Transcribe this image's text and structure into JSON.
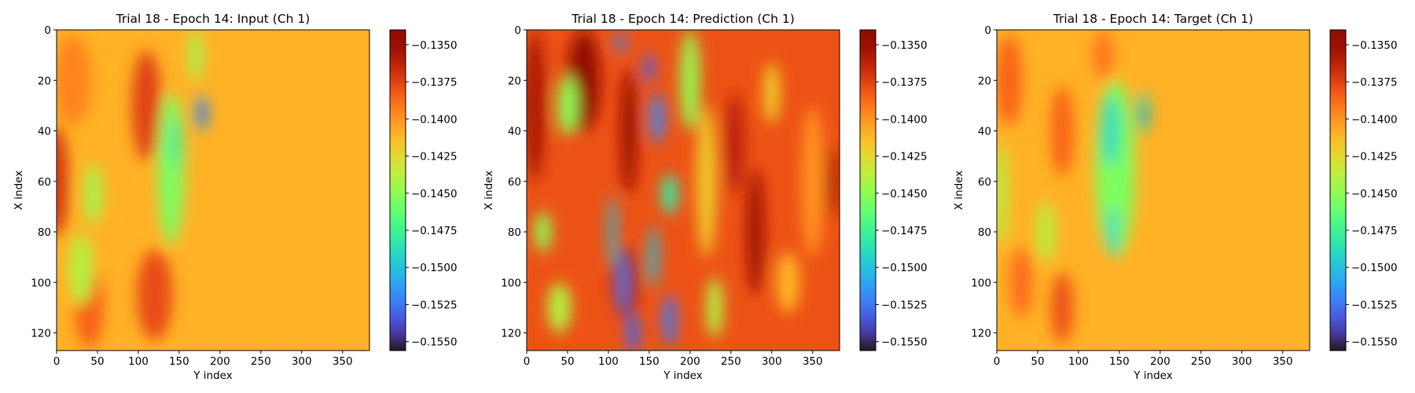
{
  "chart_data": [
    {
      "type": "heatmap",
      "title": "Trial 18 - Epoch 14: Input (Ch 1)",
      "xlabel": "Y index",
      "ylabel": "X index",
      "xlim": [
        0,
        383
      ],
      "ylim": [
        127,
        0
      ],
      "xticks": [
        "0",
        "50",
        "100",
        "150",
        "200",
        "250",
        "300",
        "350"
      ],
      "yticks": [
        "0",
        "20",
        "40",
        "60",
        "80",
        "100",
        "120"
      ],
      "colormap": "turbo",
      "color_range": [
        -0.1556,
        -0.134
      ],
      "colorbar_ticks": [
        "−0.1350",
        "−0.1375",
        "−0.1400",
        "−0.1425",
        "−0.1450",
        "−0.1475",
        "−0.1500",
        "−0.1525",
        "−0.1550"
      ],
      "features": {
        "background_value": -0.141,
        "blobs": [
          {
            "x": 0,
            "y": 60,
            "rx": 14,
            "ry": 22,
            "value": -0.137
          },
          {
            "x": 20,
            "y": 20,
            "rx": 22,
            "ry": 18,
            "value": -0.1395
          },
          {
            "x": 110,
            "y": 30,
            "rx": 18,
            "ry": 22,
            "value": -0.1375
          },
          {
            "x": 120,
            "y": 105,
            "rx": 22,
            "ry": 18,
            "value": -0.1378
          },
          {
            "x": 40,
            "y": 110,
            "rx": 18,
            "ry": 16,
            "value": -0.1385
          },
          {
            "x": 30,
            "y": 95,
            "rx": 14,
            "ry": 14,
            "value": -0.144
          },
          {
            "x": 45,
            "y": 65,
            "rx": 10,
            "ry": 12,
            "value": -0.1445
          },
          {
            "x": 140,
            "y": 55,
            "rx": 16,
            "ry": 30,
            "value": -0.1455
          },
          {
            "x": 145,
            "y": 45,
            "rx": 6,
            "ry": 10,
            "value": -0.148
          },
          {
            "x": 178,
            "y": 33,
            "rx": 7,
            "ry": 7,
            "value": -0.1515
          },
          {
            "x": 180,
            "y": 33,
            "rx": 3,
            "ry": 3,
            "value": -0.1545
          },
          {
            "x": 170,
            "y": 10,
            "rx": 8,
            "ry": 10,
            "value": -0.1445
          }
        ]
      }
    },
    {
      "type": "heatmap",
      "title": "Trial 18 - Epoch 14: Prediction (Ch 1)",
      "xlabel": "Y index",
      "ylabel": "X index",
      "xlim": [
        0,
        383
      ],
      "ylim": [
        127,
        0
      ],
      "xticks": [
        "0",
        "50",
        "100",
        "150",
        "200",
        "250",
        "300",
        "350"
      ],
      "yticks": [
        "0",
        "20",
        "40",
        "60",
        "80",
        "100",
        "120"
      ],
      "colormap": "turbo",
      "color_range": [
        -0.1556,
        -0.134
      ],
      "colorbar_ticks": [
        "−0.1350",
        "−0.1375",
        "−0.1400",
        "−0.1425",
        "−0.1450",
        "−0.1475",
        "−0.1500",
        "−0.1525",
        "−0.1550"
      ],
      "features": {
        "background_value": -0.138,
        "blobs": [
          {
            "x": 10,
            "y": 30,
            "rx": 12,
            "ry": 30,
            "value": -0.1355
          },
          {
            "x": 70,
            "y": 20,
            "rx": 20,
            "ry": 20,
            "value": -0.1345
          },
          {
            "x": 50,
            "y": 30,
            "rx": 12,
            "ry": 12,
            "value": -0.145
          },
          {
            "x": 20,
            "y": 80,
            "rx": 10,
            "ry": 8,
            "value": -0.145
          },
          {
            "x": 40,
            "y": 110,
            "rx": 14,
            "ry": 10,
            "value": -0.144
          },
          {
            "x": 120,
            "y": 100,
            "rx": 16,
            "ry": 14,
            "value": -0.1345
          },
          {
            "x": 125,
            "y": 40,
            "rx": 10,
            "ry": 25,
            "value": -0.1348
          },
          {
            "x": 105,
            "y": 80,
            "rx": 5,
            "ry": 14,
            "value": -0.15
          },
          {
            "x": 118,
            "y": 100,
            "rx": 5,
            "ry": 12,
            "value": -0.152
          },
          {
            "x": 130,
            "y": 120,
            "rx": 8,
            "ry": 8,
            "value": -0.153
          },
          {
            "x": 160,
            "y": 35,
            "rx": 8,
            "ry": 10,
            "value": -0.152
          },
          {
            "x": 175,
            "y": 65,
            "rx": 10,
            "ry": 8,
            "value": -0.148
          },
          {
            "x": 155,
            "y": 90,
            "rx": 6,
            "ry": 12,
            "value": -0.15
          },
          {
            "x": 150,
            "y": 15,
            "rx": 6,
            "ry": 6,
            "value": -0.153
          },
          {
            "x": 115,
            "y": 5,
            "rx": 6,
            "ry": 4,
            "value": -0.152
          },
          {
            "x": 175,
            "y": 115,
            "rx": 8,
            "ry": 10,
            "value": -0.1525
          },
          {
            "x": 200,
            "y": 20,
            "rx": 12,
            "ry": 20,
            "value": -0.1448
          },
          {
            "x": 220,
            "y": 60,
            "rx": 12,
            "ry": 30,
            "value": -0.142
          },
          {
            "x": 230,
            "y": 110,
            "rx": 10,
            "ry": 12,
            "value": -0.144
          },
          {
            "x": 255,
            "y": 45,
            "rx": 12,
            "ry": 20,
            "value": -0.1362
          },
          {
            "x": 280,
            "y": 80,
            "rx": 10,
            "ry": 25,
            "value": -0.135
          },
          {
            "x": 300,
            "y": 25,
            "rx": 10,
            "ry": 12,
            "value": -0.142
          },
          {
            "x": 320,
            "y": 100,
            "rx": 14,
            "ry": 12,
            "value": -0.1412
          },
          {
            "x": 350,
            "y": 60,
            "rx": 14,
            "ry": 30,
            "value": -0.14
          },
          {
            "x": 375,
            "y": 60,
            "rx": 8,
            "ry": 14,
            "value": -0.1358
          }
        ]
      }
    },
    {
      "type": "heatmap",
      "title": "Trial 18 - Epoch 14: Target (Ch 1)",
      "xlabel": "Y index",
      "ylabel": "X index",
      "xlim": [
        0,
        383
      ],
      "ylim": [
        127,
        0
      ],
      "xticks": [
        "0",
        "50",
        "100",
        "150",
        "200",
        "250",
        "300",
        "350"
      ],
      "yticks": [
        "0",
        "20",
        "40",
        "60",
        "80",
        "100",
        "120"
      ],
      "colormap": "turbo",
      "color_range": [
        -0.1556,
        -0.134
      ],
      "colorbar_ticks": [
        "−0.1350",
        "−0.1375",
        "−0.1400",
        "−0.1425",
        "−0.1450",
        "−0.1475",
        "−0.1500",
        "−0.1525",
        "−0.1550"
      ],
      "features": {
        "background_value": -0.141,
        "blobs": [
          {
            "x": 15,
            "y": 20,
            "rx": 16,
            "ry": 18,
            "value": -0.1385
          },
          {
            "x": 30,
            "y": 100,
            "rx": 14,
            "ry": 14,
            "value": -0.1388
          },
          {
            "x": 80,
            "y": 40,
            "rx": 14,
            "ry": 18,
            "value": -0.1385
          },
          {
            "x": 80,
            "y": 110,
            "rx": 14,
            "ry": 14,
            "value": -0.138
          },
          {
            "x": 130,
            "y": 10,
            "rx": 12,
            "ry": 10,
            "value": -0.139
          },
          {
            "x": 5,
            "y": 65,
            "rx": 8,
            "ry": 20,
            "value": -0.144
          },
          {
            "x": 145,
            "y": 55,
            "rx": 24,
            "ry": 35,
            "value": -0.1455
          },
          {
            "x": 140,
            "y": 40,
            "rx": 10,
            "ry": 14,
            "value": -0.149
          },
          {
            "x": 142,
            "y": 80,
            "rx": 4,
            "ry": 10,
            "value": -0.1505
          },
          {
            "x": 180,
            "y": 33,
            "rx": 7,
            "ry": 8,
            "value": -0.149
          },
          {
            "x": 182,
            "y": 34,
            "rx": 3,
            "ry": 3,
            "value": -0.1545
          },
          {
            "x": 60,
            "y": 80,
            "rx": 10,
            "ry": 12,
            "value": -0.144
          }
        ]
      }
    }
  ]
}
